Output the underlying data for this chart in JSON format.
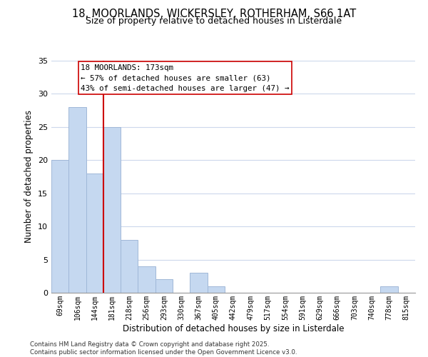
{
  "title_line1": "18, MOORLANDS, WICKERSLEY, ROTHERHAM, S66 1AT",
  "title_line2": "Size of property relative to detached houses in Listerdale",
  "xlabel": "Distribution of detached houses by size in Listerdale",
  "ylabel": "Number of detached properties",
  "bin_labels": [
    "69sqm",
    "106sqm",
    "144sqm",
    "181sqm",
    "218sqm",
    "256sqm",
    "293sqm",
    "330sqm",
    "367sqm",
    "405sqm",
    "442sqm",
    "479sqm",
    "517sqm",
    "554sqm",
    "591sqm",
    "629sqm",
    "666sqm",
    "703sqm",
    "740sqm",
    "778sqm",
    "815sqm"
  ],
  "bar_values": [
    20,
    28,
    18,
    25,
    8,
    4,
    2,
    0,
    3,
    1,
    0,
    0,
    0,
    0,
    0,
    0,
    0,
    0,
    0,
    1,
    0
  ],
  "bar_color": "#c5d8f0",
  "bar_edgecolor": "#a0b8d8",
  "vline_x_index": 3,
  "marker_label": "18 MOORLANDS: 173sqm",
  "annotation_line2": "← 57% of detached houses are smaller (63)",
  "annotation_line3": "43% of semi-detached houses are larger (47) →",
  "vline_color": "#cc0000",
  "ylim": [
    0,
    35
  ],
  "yticks": [
    0,
    5,
    10,
    15,
    20,
    25,
    30,
    35
  ],
  "footer_line1": "Contains HM Land Registry data © Crown copyright and database right 2025.",
  "footer_line2": "Contains public sector information licensed under the Open Government Licence v3.0.",
  "bg_color": "#ffffff",
  "plot_bg_color": "#ffffff",
  "grid_color": "#ccd8ec"
}
